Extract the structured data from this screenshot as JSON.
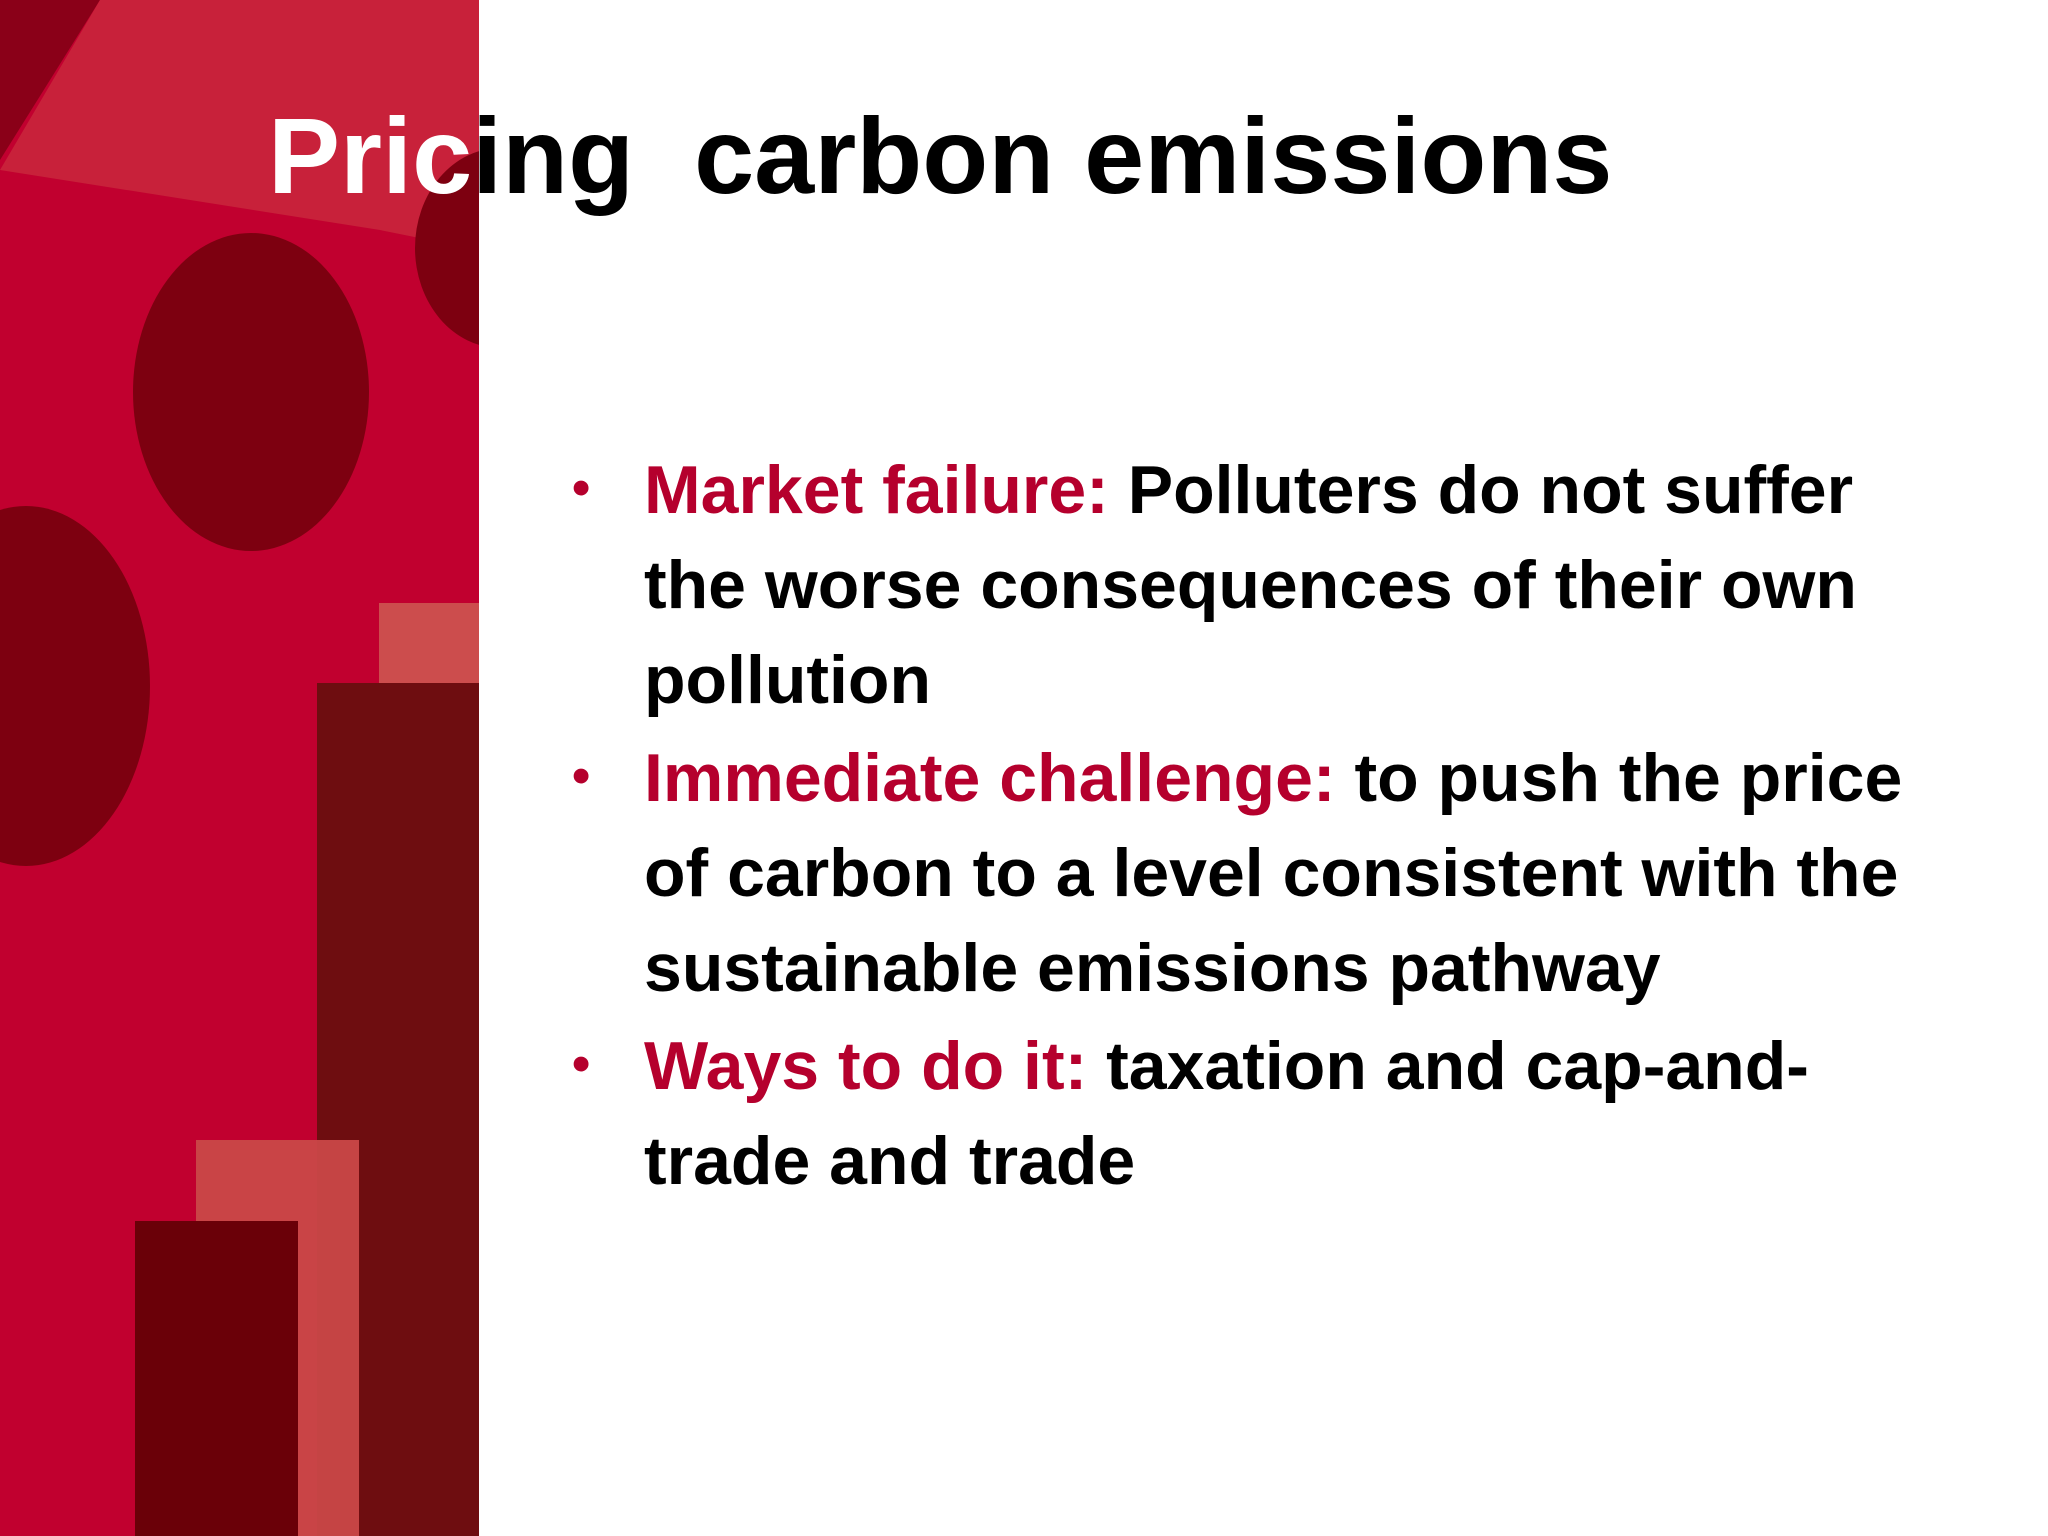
{
  "title": "Pricing  carbon emissions",
  "bullets": [
    {
      "label": "Market failure:",
      "text": "Polluters do not suffer the worse consequences of their own pollution"
    },
    {
      "label": "Immediate challenge:",
      "text": "to push the price of carbon to a level consistent with the sustainable emissions pathway"
    },
    {
      "label": "Ways to do it:",
      "text": "taxation and cap-and-trade and trade"
    }
  ]
}
